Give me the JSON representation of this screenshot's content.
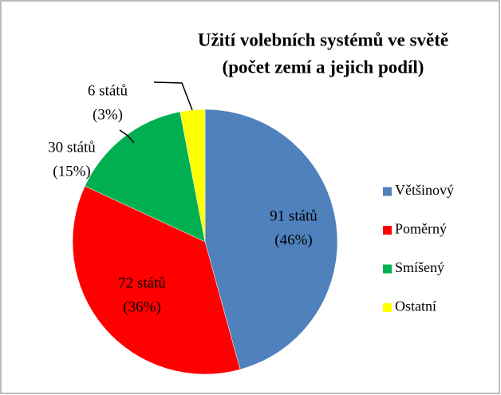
{
  "chart_data": {
    "type": "pie",
    "title": [
      "Užití volebních systémů ve světě",
      "(počet zemí a jejich podíl)"
    ],
    "categories": [
      "Většinový",
      "Poměrný",
      "Smíšený",
      "Ostatní"
    ],
    "values": [
      91,
      72,
      30,
      6
    ],
    "value_labels": [
      [
        "91 států",
        "(46%)"
      ],
      [
        "72 států",
        "(36%)"
      ],
      [
        "30 států",
        "(15%)"
      ],
      [
        "6 států",
        "(3%)"
      ]
    ],
    "colors": [
      "#4f81bd",
      "#ff0000",
      "#00b050",
      "#ffff00"
    ],
    "legend": "right"
  }
}
